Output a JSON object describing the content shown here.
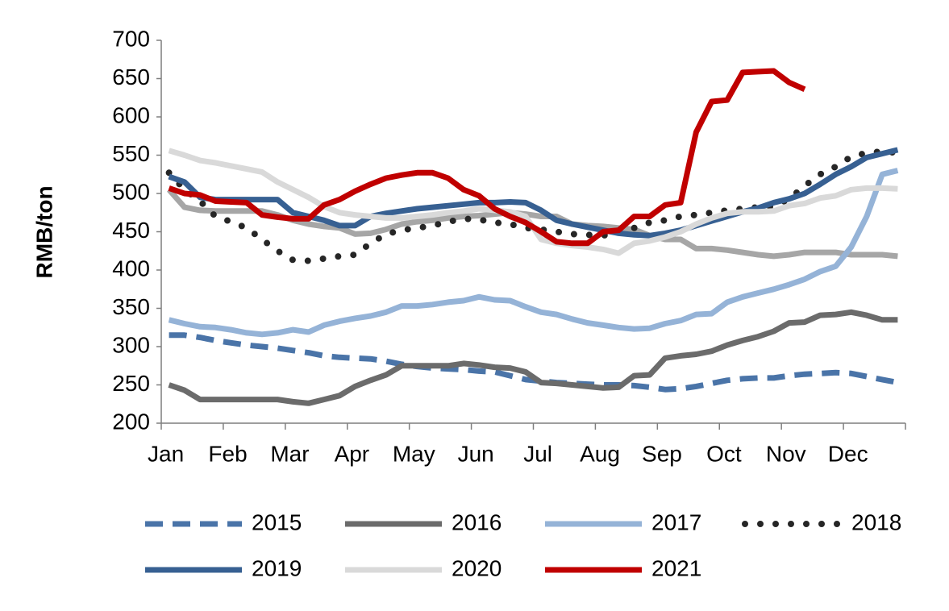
{
  "chart_data": {
    "type": "line",
    "y_label": "RMB/ton",
    "categories": [
      "Jan",
      null,
      null,
      null,
      "Feb",
      null,
      null,
      null,
      "Mar",
      null,
      null,
      null,
      "Apr",
      null,
      null,
      null,
      "May",
      null,
      null,
      null,
      "Jun",
      null,
      null,
      null,
      "Jul",
      null,
      null,
      null,
      "Aug",
      null,
      null,
      null,
      "Sep",
      null,
      null,
      null,
      "Oct",
      null,
      null,
      null,
      "Nov",
      null,
      null,
      null,
      "Dec",
      null,
      null,
      null
    ],
    "ylim": [
      200,
      700
    ],
    "yticks": [
      200,
      250,
      300,
      350,
      400,
      450,
      500,
      550,
      600,
      650,
      700
    ],
    "series": [
      {
        "color": "#a6a6a6",
        "style": "solid",
        "values": [
          505,
          482,
          478,
          477,
          477,
          477,
          477,
          472,
          465,
          460,
          457,
          455,
          447,
          448,
          453,
          460,
          463,
          465,
          468,
          470,
          471,
          473,
          475,
          473,
          470,
          470,
          460,
          458,
          457,
          455,
          453,
          445,
          440,
          440,
          428,
          428,
          426,
          423,
          420,
          418,
          420,
          423,
          423,
          423,
          420,
          420,
          420,
          418
        ]
      },
      {
        "name": "2015",
        "color": "#4a74a8",
        "style": "dashed",
        "values": [
          315,
          315,
          312,
          308,
          305,
          302,
          300,
          298,
          295,
          292,
          288,
          286,
          285,
          284,
          281,
          277,
          274,
          272,
          271,
          270,
          268,
          267,
          262,
          257,
          255,
          253,
          252,
          251,
          250,
          250,
          249,
          247,
          244,
          245,
          248,
          252,
          256,
          258,
          259,
          259,
          262,
          264,
          265,
          266,
          265,
          261,
          257,
          253
        ]
      },
      {
        "name": "2016",
        "color": "#6b6b6b",
        "style": "solid",
        "values": [
          250,
          243,
          231,
          231,
          231,
          231,
          231,
          231,
          228,
          226,
          231,
          236,
          248,
          256,
          263,
          275,
          275,
          275,
          275,
          278,
          276,
          273,
          272,
          267,
          253,
          252,
          250,
          248,
          246,
          247,
          262,
          263,
          285,
          288,
          290,
          294,
          302,
          308,
          313,
          320,
          331,
          332,
          341,
          342,
          345,
          341,
          335,
          335
        ]
      },
      {
        "name": "2017",
        "color": "#95b3d7",
        "style": "solid",
        "values": [
          335,
          330,
          326,
          325,
          322,
          318,
          316,
          318,
          322,
          319,
          328,
          333,
          337,
          340,
          345,
          353,
          353,
          355,
          358,
          360,
          365,
          361,
          360,
          352,
          345,
          342,
          336,
          331,
          328,
          325,
          323,
          324,
          330,
          334,
          342,
          343,
          358,
          365,
          370,
          375,
          381,
          388,
          398,
          405,
          430,
          470,
          525,
          530
        ]
      },
      {
        "name": "2018",
        "color": "#262626",
        "style": "dotted",
        "values": [
          527,
          505,
          490,
          470,
          463,
          455,
          440,
          425,
          413,
          412,
          415,
          418,
          420,
          435,
          447,
          452,
          455,
          458,
          463,
          467,
          466,
          462,
          460,
          455,
          453,
          450,
          447,
          446,
          445,
          449,
          455,
          462,
          465,
          470,
          472,
          475,
          478,
          480,
          482,
          483,
          493,
          510,
          525,
          535,
          548,
          553,
          555,
          553
        ]
      },
      {
        "name": "2019",
        "color": "#376092",
        "style": "solid",
        "values": [
          522,
          515,
          495,
          492,
          492,
          492,
          492,
          492,
          475,
          470,
          465,
          458,
          458,
          470,
          474,
          477,
          480,
          482,
          484,
          486,
          488,
          488,
          489,
          488,
          478,
          465,
          460,
          456,
          452,
          448,
          446,
          445,
          448,
          452,
          458,
          464,
          470,
          476,
          481,
          488,
          493,
          500,
          512,
          525,
          535,
          547,
          552,
          557
        ]
      },
      {
        "name": "2020",
        "color": "#d9d9d9",
        "style": "solid",
        "values": [
          556,
          550,
          543,
          540,
          536,
          532,
          528,
          515,
          505,
          495,
          483,
          475,
          472,
          470,
          468,
          468,
          470,
          472,
          475,
          477,
          480,
          478,
          476,
          470,
          440,
          435,
          432,
          430,
          427,
          422,
          435,
          438,
          443,
          450,
          460,
          468,
          474,
          476,
          476,
          477,
          484,
          487,
          494,
          497,
          505,
          507,
          507,
          506
        ]
      },
      {
        "name": "2021",
        "color": "#c00000",
        "style": "solid",
        "values": [
          507,
          500,
          498,
          490,
          489,
          488,
          472,
          469,
          467,
          467,
          485,
          492,
          503,
          512,
          520,
          524,
          527,
          527,
          520,
          505,
          497,
          480,
          470,
          462,
          450,
          437,
          435,
          435,
          450,
          452,
          470,
          470,
          485,
          488,
          580,
          620,
          622,
          658,
          659,
          660,
          645,
          636,
          null,
          null,
          null,
          null,
          null,
          null
        ]
      }
    ]
  }
}
